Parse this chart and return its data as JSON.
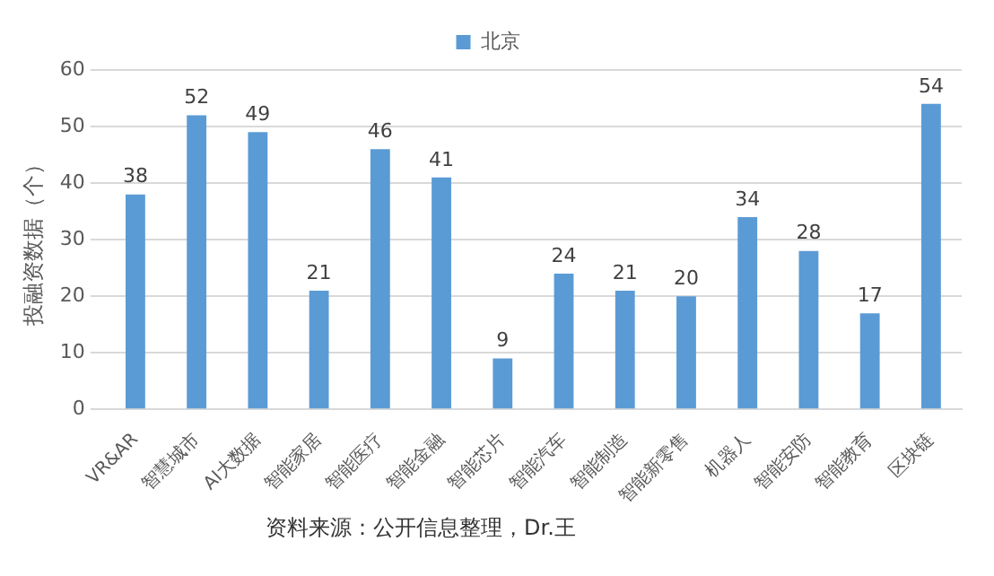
{
  "chart_data": {
    "type": "bar",
    "ylabel": "投融资数据（个）",
    "categories": [
      "VR&AR",
      "智慧城市",
      "AI大数据",
      "智能家居",
      "智能医疗",
      "智能金融",
      "智能芯片",
      "智能汽车",
      "智能制造",
      "智能新零售",
      "机器人",
      "智能安防",
      "智能教育",
      "区块链"
    ],
    "series": [
      {
        "name": "北京",
        "color": "#5b9bd5",
        "values": [
          38,
          52,
          49,
          21,
          46,
          41,
          9,
          24,
          21,
          20,
          34,
          28,
          17,
          54
        ]
      }
    ],
    "ylim": [
      0,
      60
    ],
    "yticks": [
      0,
      10,
      20,
      30,
      40,
      50,
      60
    ],
    "grid": "y",
    "legend": "top",
    "data_labels": true,
    "annotations": [
      "资料来源：公开信息整理，Dr.王"
    ]
  }
}
